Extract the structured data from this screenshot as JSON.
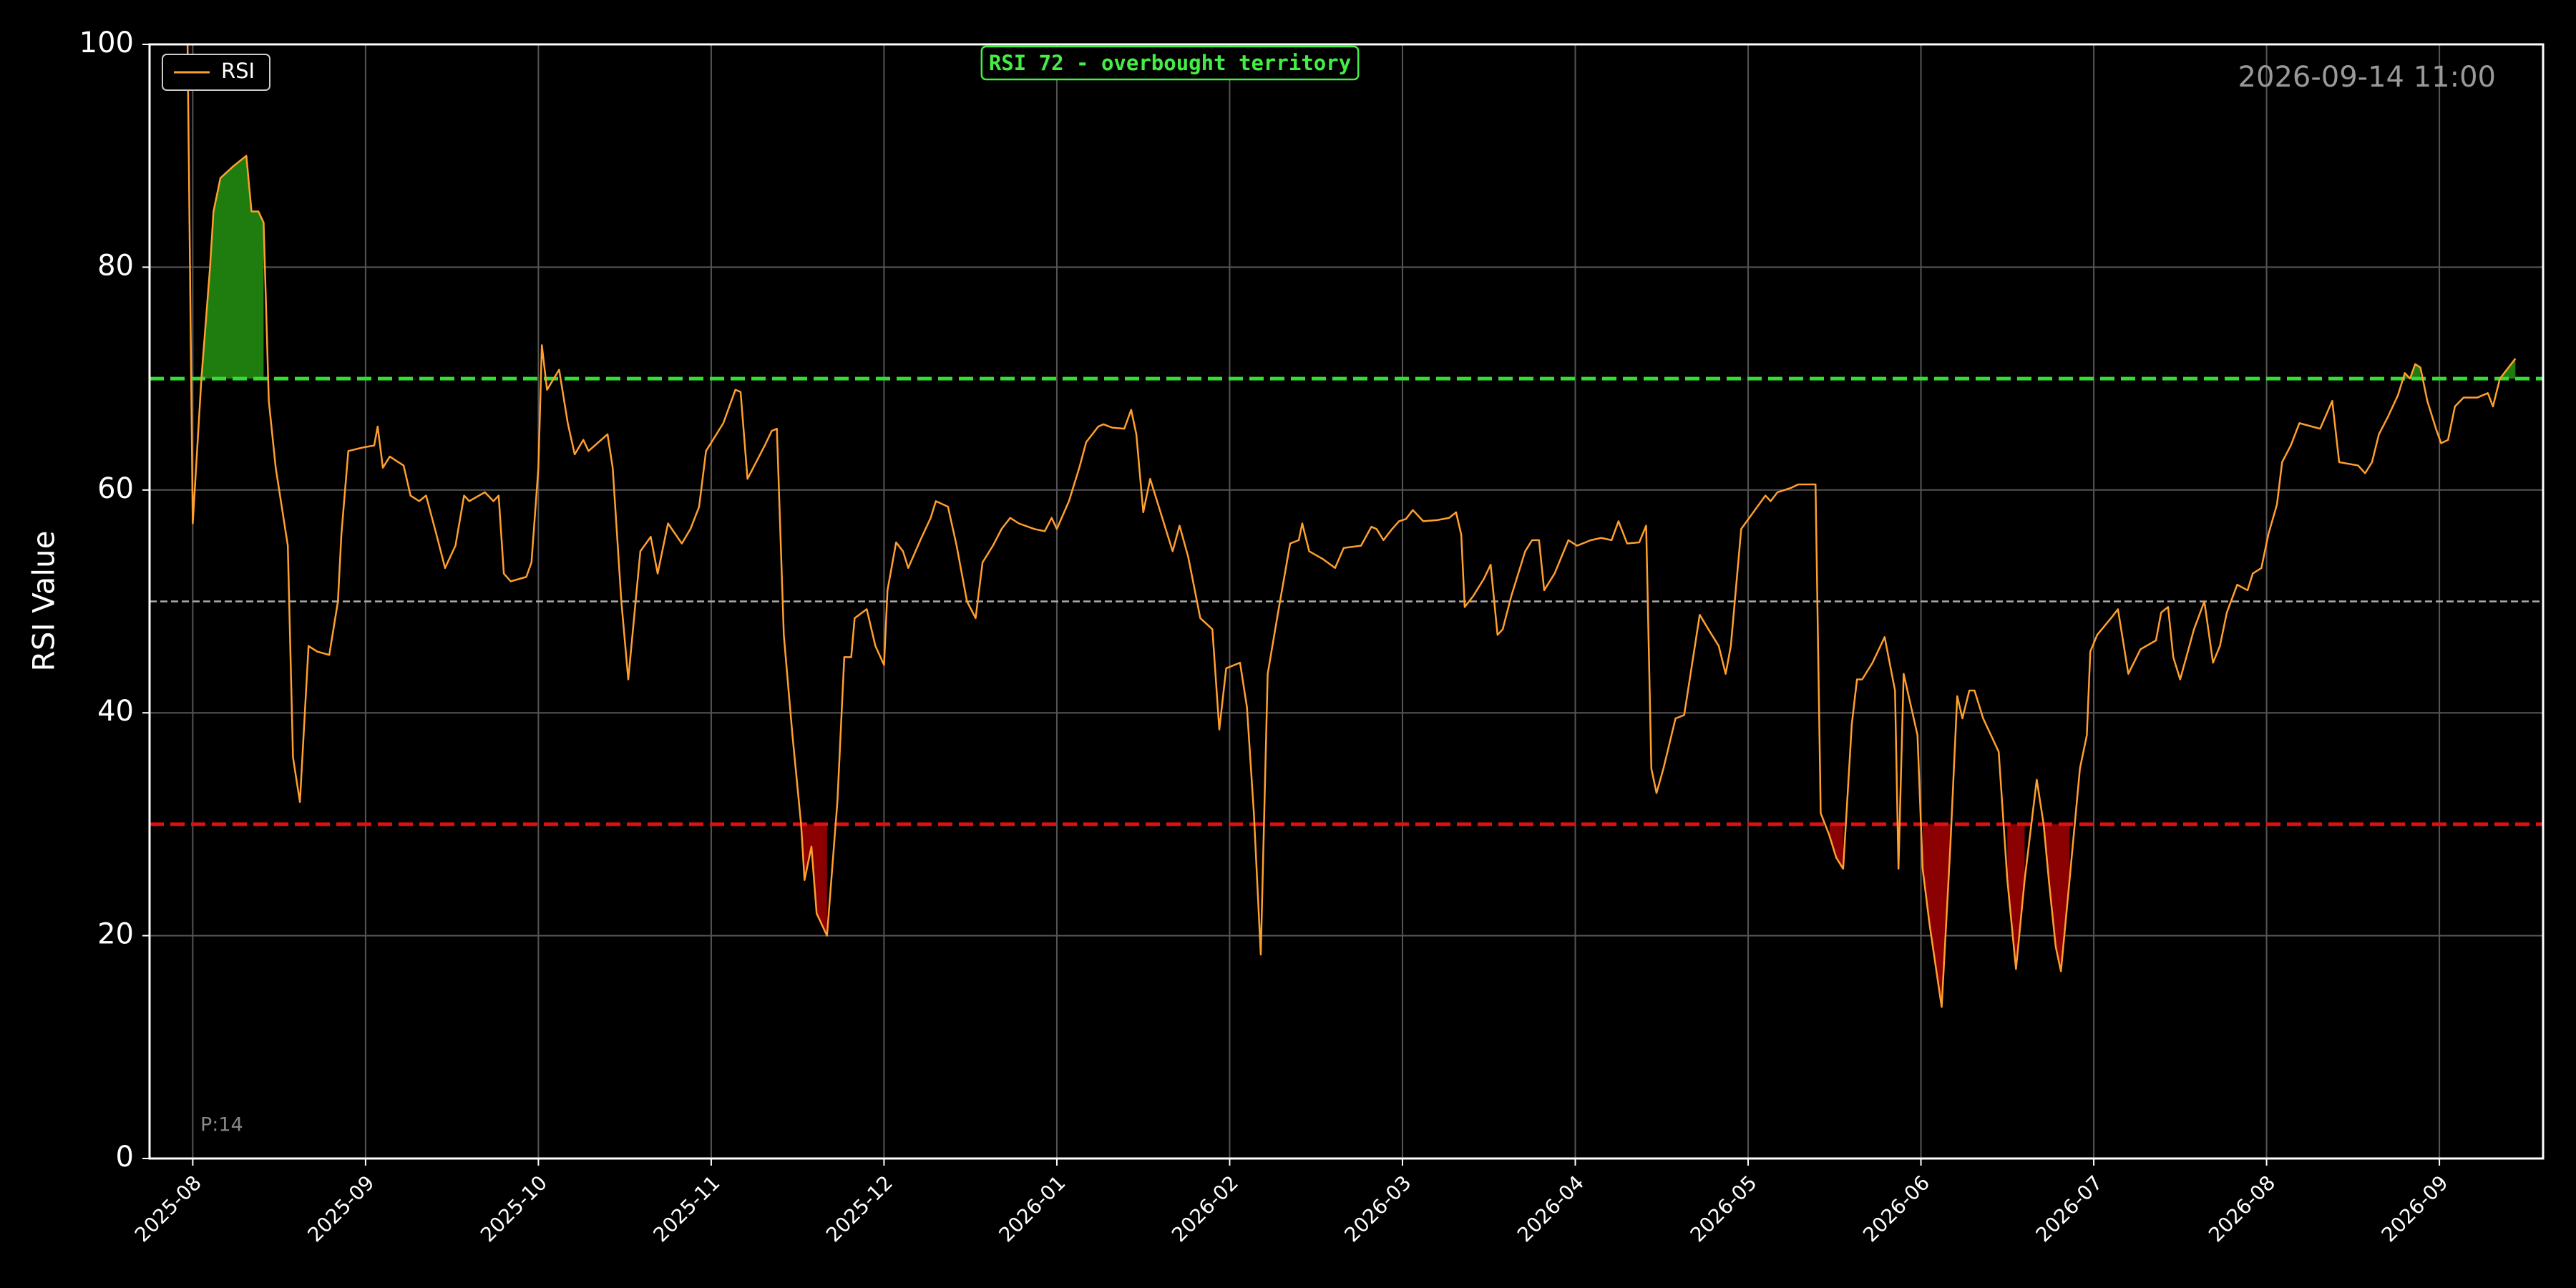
{
  "chart_data": {
    "type": "line",
    "ylabel": "RSI Value",
    "annotation": "RSI 72 - overbought territory",
    "timestamp": "2026-09-14 11:00",
    "period_label": "P:14",
    "xlim": [
      -0.25,
      13.6
    ],
    "xticks": [
      {
        "value": 0,
        "label": "2025-08"
      },
      {
        "value": 1,
        "label": "2025-09"
      },
      {
        "value": 2,
        "label": "2025-10"
      },
      {
        "value": 3,
        "label": "2025-11"
      },
      {
        "value": 4,
        "label": "2025-12"
      },
      {
        "value": 5,
        "label": "2026-01"
      },
      {
        "value": 6,
        "label": "2026-02"
      },
      {
        "value": 7,
        "label": "2026-03"
      },
      {
        "value": 8,
        "label": "2026-04"
      },
      {
        "value": 9,
        "label": "2026-05"
      },
      {
        "value": 10,
        "label": "2026-06"
      },
      {
        "value": 11,
        "label": "2026-07"
      },
      {
        "value": 12,
        "label": "2026-08"
      },
      {
        "value": 13,
        "label": "2026-09"
      }
    ],
    "ylim": [
      0,
      100
    ],
    "yticks": [
      0,
      20,
      40,
      60,
      80,
      100
    ],
    "grid": true,
    "legend": "upper left",
    "hlines": [
      {
        "value": 70,
        "color": "#33dd33",
        "style": "dashed",
        "fill": "#1f7d10",
        "fill_side": "above"
      },
      {
        "value": 30,
        "color": "#dd1111",
        "style": "dashed",
        "fill": "#8b0000",
        "fill_side": "below"
      },
      {
        "value": 50,
        "color": "#aaaaaa",
        "style": "dashed"
      }
    ],
    "x": [
      -0.03,
      0,
      0.05,
      0.1,
      0.12,
      0.16,
      0.23,
      0.31,
      0.34,
      0.38,
      0.41,
      0.44,
      0.48,
      0.55,
      0.58,
      0.62,
      0.67,
      0.72,
      0.79,
      0.84,
      0.86,
      0.9,
      0.98,
      1.05,
      1.07,
      1.1,
      1.14,
      1.22,
      1.26,
      1.31,
      1.35,
      1.41,
      1.46,
      1.52,
      1.57,
      1.6,
      1.69,
      1.74,
      1.77,
      1.8,
      1.84,
      1.93,
      1.96,
      2.0,
      2.02,
      2.05,
      2.12,
      2.17,
      2.21,
      2.26,
      2.29,
      2.4,
      2.43,
      2.48,
      2.52,
      2.59,
      2.65,
      2.69,
      2.75,
      2.83,
      2.88,
      2.93,
      2.97,
      3.07,
      3.14,
      3.17,
      3.21,
      3.31,
      3.35,
      3.38,
      3.42,
      3.47,
      3.52,
      3.54,
      3.58,
      3.61,
      3.67,
      3.73,
      3.77,
      3.81,
      3.83,
      3.9,
      3.95,
      4.0,
      4.02,
      4.07,
      4.11,
      4.14,
      4.21,
      4.27,
      4.3,
      4.37,
      4.42,
      4.48,
      4.53,
      4.57,
      4.63,
      4.68,
      4.73,
      4.78,
      4.87,
      4.93,
      4.97,
      5.0,
      5.07,
      5.13,
      5.17,
      5.24,
      5.27,
      5.32,
      5.39,
      5.43,
      5.46,
      5.5,
      5.54,
      5.64,
      5.67,
      5.71,
      5.76,
      5.83,
      5.9,
      5.94,
      5.98,
      6.06,
      6.1,
      6.14,
      6.18,
      6.22,
      6.28,
      6.35,
      6.4,
      6.42,
      6.46,
      6.54,
      6.61,
      6.66,
      6.76,
      6.82,
      6.85,
      6.89,
      6.94,
      6.98,
      7.02,
      7.06,
      7.12,
      7.2,
      7.27,
      7.31,
      7.34,
      7.36,
      7.41,
      7.47,
      7.51,
      7.55,
      7.58,
      7.63,
      7.71,
      7.75,
      7.79,
      7.82,
      7.88,
      7.96,
      8.01,
      8.09,
      8.15,
      8.21,
      8.25,
      8.3,
      8.37,
      8.41,
      8.44,
      8.47,
      8.51,
      8.58,
      8.63,
      8.72,
      8.77,
      8.83,
      8.87,
      8.9,
      8.96,
      9.03,
      9.1,
      9.13,
      9.17,
      9.25,
      9.29,
      9.39,
      9.42,
      9.47,
      9.51,
      9.55,
      9.6,
      9.63,
      9.66,
      9.72,
      9.79,
      9.85,
      9.87,
      9.9,
      9.98,
      10.01,
      10.05,
      10.12,
      10.17,
      10.21,
      10.24,
      10.28,
      10.31,
      10.36,
      10.45,
      10.5,
      10.55,
      10.6,
      10.67,
      10.71,
      10.74,
      10.78,
      10.81,
      10.86,
      10.92,
      10.96,
      10.98,
      11.02,
      11.1,
      11.14,
      11.2,
      11.27,
      11.36,
      11.39,
      11.43,
      11.46,
      11.5,
      11.58,
      11.64,
      11.69,
      11.73,
      11.77,
      11.83,
      11.89,
      11.92,
      11.97,
      12.01,
      12.06,
      12.09,
      12.14,
      12.19,
      12.31,
      12.38,
      12.42,
      12.53,
      12.57,
      12.61,
      12.65,
      12.7,
      12.76,
      12.8,
      12.83,
      12.86,
      12.89,
      12.93,
      12.98,
      13.01,
      13.05,
      13.09,
      13.14,
      13.22,
      13.28,
      13.31,
      13.35,
      13.44
    ],
    "series": [
      {
        "name": "RSI",
        "color": "#ff9f2e",
        "values": [
          100,
          57,
          70,
          80,
          85,
          88,
          89,
          90,
          85,
          85,
          84,
          68,
          62,
          55,
          36,
          32,
          46,
          45.5,
          45.2,
          50,
          56,
          63.5,
          63.8,
          64,
          65.7,
          62,
          63,
          62.2,
          59.5,
          59,
          59.5,
          56,
          53,
          55,
          59.5,
          59,
          59.8,
          59,
          59.5,
          52.5,
          51.8,
          52.2,
          53.5,
          62,
          73,
          69,
          70.8,
          66,
          63.2,
          64.5,
          63.5,
          65,
          62,
          50,
          43,
          54.5,
          55.8,
          52.5,
          57,
          55.2,
          56.5,
          58.5,
          63.5,
          66,
          69,
          68.8,
          61,
          64,
          65.3,
          65.5,
          47,
          38,
          30,
          25,
          28,
          22,
          20,
          32,
          45,
          45,
          48.5,
          49.3,
          46,
          44.3,
          51,
          55.3,
          54.5,
          53,
          55.5,
          57.5,
          59,
          58.5,
          55,
          50,
          48.5,
          53.5,
          55,
          56.5,
          57.5,
          57,
          56.5,
          56.3,
          57.5,
          56.5,
          59,
          62,
          64.3,
          65.7,
          65.9,
          65.6,
          65.5,
          67.2,
          65,
          58,
          61,
          56,
          54.5,
          56.8,
          54,
          48.5,
          47.5,
          38.5,
          44,
          44.5,
          40.5,
          31,
          18.3,
          43.5,
          49,
          55.2,
          55.5,
          57,
          54.5,
          53.8,
          53,
          54.8,
          55,
          56.7,
          56.5,
          55.5,
          56.5,
          57.2,
          57.4,
          58.2,
          57.2,
          57.3,
          57.5,
          58,
          56,
          49.5,
          50.5,
          52,
          53.3,
          47,
          47.5,
          50.5,
          54.5,
          55.5,
          55.5,
          51,
          52.5,
          55.5,
          55,
          55.5,
          55.7,
          55.5,
          57.2,
          55.2,
          55.3,
          56.8,
          35,
          32.8,
          35,
          39.5,
          39.8,
          48.8,
          47.5,
          46,
          43.5,
          46,
          56.5,
          58,
          59.5,
          59,
          59.8,
          60.2,
          60.5,
          60.5,
          31,
          29,
          27,
          26,
          39,
          43,
          43,
          44.5,
          46.8,
          42,
          26,
          43.5,
          38,
          26,
          21,
          13.6,
          28,
          41.5,
          39.5,
          42,
          42,
          39.5,
          36.5,
          25,
          17,
          25,
          34,
          30,
          25,
          19,
          16.8,
          25,
          35,
          38,
          45.5,
          47,
          48.5,
          49.3,
          43.5,
          45.7,
          46.5,
          49,
          49.5,
          45,
          43,
          47.5,
          50,
          44.5,
          46,
          49,
          51.5,
          51,
          52.5,
          53,
          56,
          58.7,
          62.5,
          64,
          66,
          65.5,
          68,
          62.5,
          62.2,
          61.5,
          62.5,
          65,
          66.5,
          68.5,
          70.5,
          70,
          71.3,
          71,
          68,
          65.5,
          64.2,
          64.5,
          67.5,
          68.3,
          68.3,
          68.7,
          67.5,
          70,
          71.8
        ]
      }
    ]
  }
}
